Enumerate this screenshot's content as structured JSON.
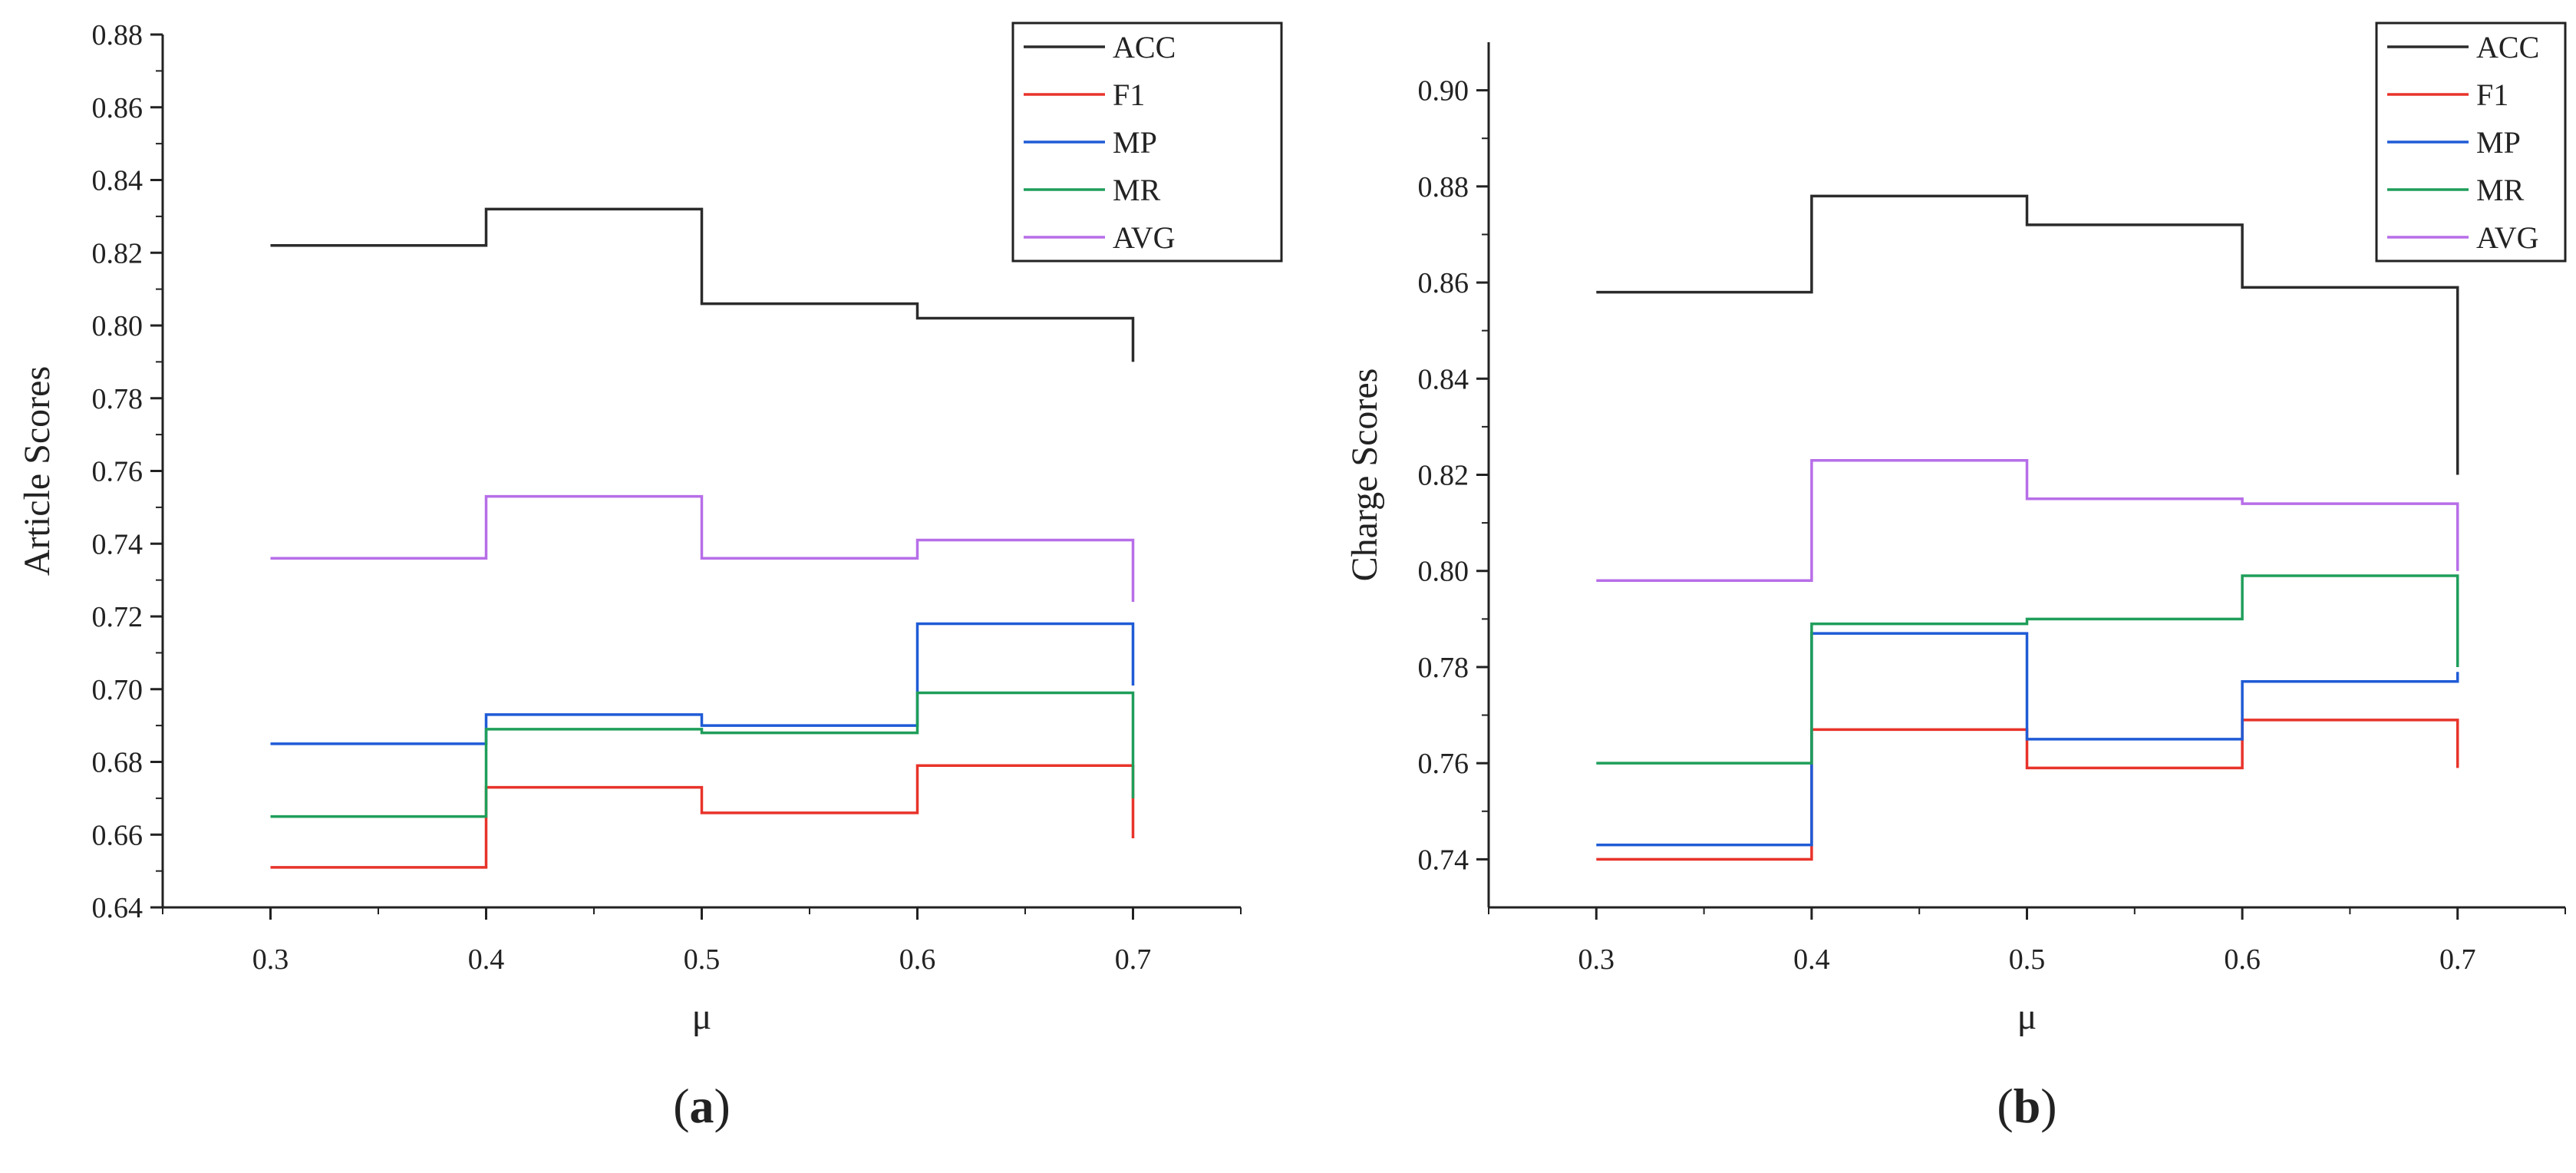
{
  "chart_data": [
    {
      "type": "line",
      "step": "post",
      "panel_label_open": "(",
      "panel_label": "a",
      "panel_label_close": ")",
      "title": "",
      "xlabel": "μ",
      "ylabel": "Article Scores",
      "xlim": [
        0.25,
        0.75
      ],
      "ylim": [
        0.64,
        0.88
      ],
      "x": [
        0.3,
        0.4,
        0.5,
        0.6,
        0.7
      ],
      "xticks": [
        "0.3",
        "0.4",
        "0.5",
        "0.6",
        "0.7"
      ],
      "yticks": [
        "0.64",
        "0.66",
        "0.68",
        "0.70",
        "0.72",
        "0.74",
        "0.76",
        "0.78",
        "0.80",
        "0.82",
        "0.84",
        "0.86",
        "0.88"
      ],
      "ytick_values": [
        0.64,
        0.66,
        0.68,
        0.7,
        0.72,
        0.74,
        0.76,
        0.78,
        0.8,
        0.82,
        0.84,
        0.86,
        0.88
      ],
      "legend_position": "top-right",
      "series": [
        {
          "name": "ACC",
          "color": "#2b2b2b",
          "values": [
            0.822,
            0.832,
            0.806,
            0.802,
            0.79
          ]
        },
        {
          "name": "F1",
          "color": "#e8332a",
          "values": [
            0.651,
            0.673,
            0.666,
            0.679,
            0.659
          ]
        },
        {
          "name": "MP",
          "color": "#1f5bd6",
          "values": [
            0.685,
            0.693,
            0.69,
            0.718,
            0.701
          ]
        },
        {
          "name": "MR",
          "color": "#1f9e5a",
          "values": [
            0.665,
            0.689,
            0.688,
            0.699,
            0.67
          ]
        },
        {
          "name": "AVG",
          "color": "#b76ee8",
          "values": [
            0.736,
            0.753,
            0.736,
            0.741,
            0.724
          ]
        }
      ]
    },
    {
      "type": "line",
      "step": "post",
      "panel_label_open": "(",
      "panel_label": "b",
      "panel_label_close": ")",
      "title": "",
      "xlabel": "μ",
      "ylabel": "Charge Scores",
      "xlim": [
        0.25,
        0.75
      ],
      "ylim": [
        0.73,
        0.91
      ],
      "x": [
        0.3,
        0.4,
        0.5,
        0.6,
        0.7
      ],
      "xticks": [
        "0.3",
        "0.4",
        "0.5",
        "0.6",
        "0.7"
      ],
      "yticks": [
        "0.74",
        "0.76",
        "0.78",
        "0.80",
        "0.82",
        "0.84",
        "0.86",
        "0.88",
        "0.90"
      ],
      "ytick_values": [
        0.74,
        0.76,
        0.78,
        0.8,
        0.82,
        0.84,
        0.86,
        0.88,
        0.9
      ],
      "legend_position": "top-right",
      "series": [
        {
          "name": "ACC",
          "color": "#2b2b2b",
          "values": [
            0.858,
            0.878,
            0.872,
            0.859,
            0.82
          ]
        },
        {
          "name": "F1",
          "color": "#e8332a",
          "values": [
            0.74,
            0.767,
            0.759,
            0.769,
            0.759
          ]
        },
        {
          "name": "MP",
          "color": "#1f5bd6",
          "values": [
            0.743,
            0.787,
            0.765,
            0.777,
            0.779
          ]
        },
        {
          "name": "MR",
          "color": "#1f9e5a",
          "values": [
            0.76,
            0.789,
            0.79,
            0.799,
            0.78
          ]
        },
        {
          "name": "AVG",
          "color": "#b76ee8",
          "values": [
            0.798,
            0.823,
            0.815,
            0.814,
            0.8
          ]
        }
      ]
    }
  ]
}
